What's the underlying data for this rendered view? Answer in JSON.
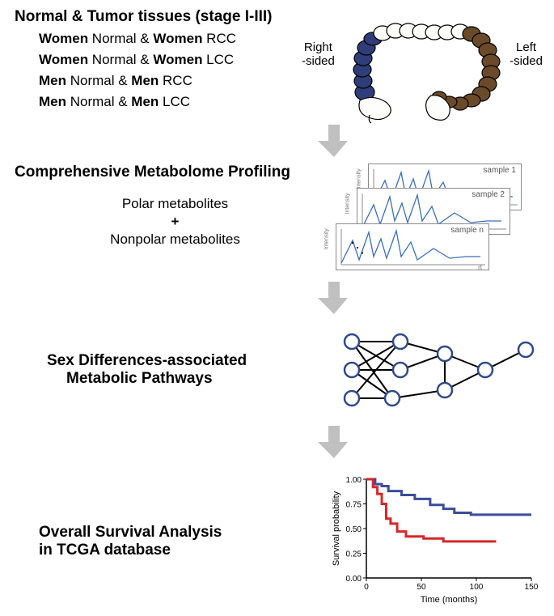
{
  "section1": {
    "title": "Normal & Tumor tissues (stage I-III)",
    "rows": [
      {
        "b1": "Women",
        "mid": " Normal & ",
        "b2": "Women",
        "tail": " RCC"
      },
      {
        "b1": "Women",
        "mid": " Normal & ",
        "b2": "Women",
        "tail": " LCC"
      },
      {
        "b1": "Men",
        "mid": " Normal & ",
        "b2": "Men",
        "tail": " RCC"
      },
      {
        "b1": "Men",
        "mid": " Normal & ",
        "b2": "Men",
        "tail": " LCC"
      }
    ],
    "labels": {
      "left": "Right\n-sided",
      "right": "Left\n-sided"
    }
  },
  "section2": {
    "title": "Comprehensive Metabolome Profiling",
    "line1": "Polar metabolites",
    "plus": "+",
    "line2": "Nonpolar metabolites",
    "samples": [
      "sample 1",
      "sample 2",
      "sample n"
    ],
    "chart_axis_y": "Intensity",
    "chart_axis_x": "rt",
    "line_color": "#3b6fb6"
  },
  "section3": {
    "title1": "Sex Differences-associated",
    "title2": "Metabolic Pathways",
    "node_stroke": "#2f4a8a",
    "edge_color": "#000"
  },
  "section4": {
    "title1": "Overall Survival Analysis",
    "title2": "in TCGA database",
    "km": {
      "ylabel": "Survival probability",
      "xlabel": "Time (months)",
      "yticks": [
        "0.00",
        "0.25",
        "0.50",
        "0.75",
        "1.00"
      ],
      "xticks": [
        "0",
        "50",
        "100",
        "150"
      ],
      "colors": {
        "a": "#3a4d9b",
        "b": "#d62728"
      },
      "series_a": [
        [
          0,
          1.0
        ],
        [
          8,
          0.95
        ],
        [
          14,
          0.93
        ],
        [
          20,
          0.88
        ],
        [
          32,
          0.84
        ],
        [
          44,
          0.8
        ],
        [
          58,
          0.74
        ],
        [
          70,
          0.7
        ],
        [
          80,
          0.66
        ],
        [
          95,
          0.64
        ],
        [
          150,
          0.64
        ]
      ],
      "series_b": [
        [
          0,
          1.0
        ],
        [
          6,
          0.92
        ],
        [
          10,
          0.85
        ],
        [
          14,
          0.75
        ],
        [
          18,
          0.6
        ],
        [
          22,
          0.55
        ],
        [
          28,
          0.47
        ],
        [
          36,
          0.42
        ],
        [
          52,
          0.4
        ],
        [
          70,
          0.37
        ],
        [
          118,
          0.37
        ]
      ]
    }
  },
  "arrow_color": "#c0c0c0"
}
